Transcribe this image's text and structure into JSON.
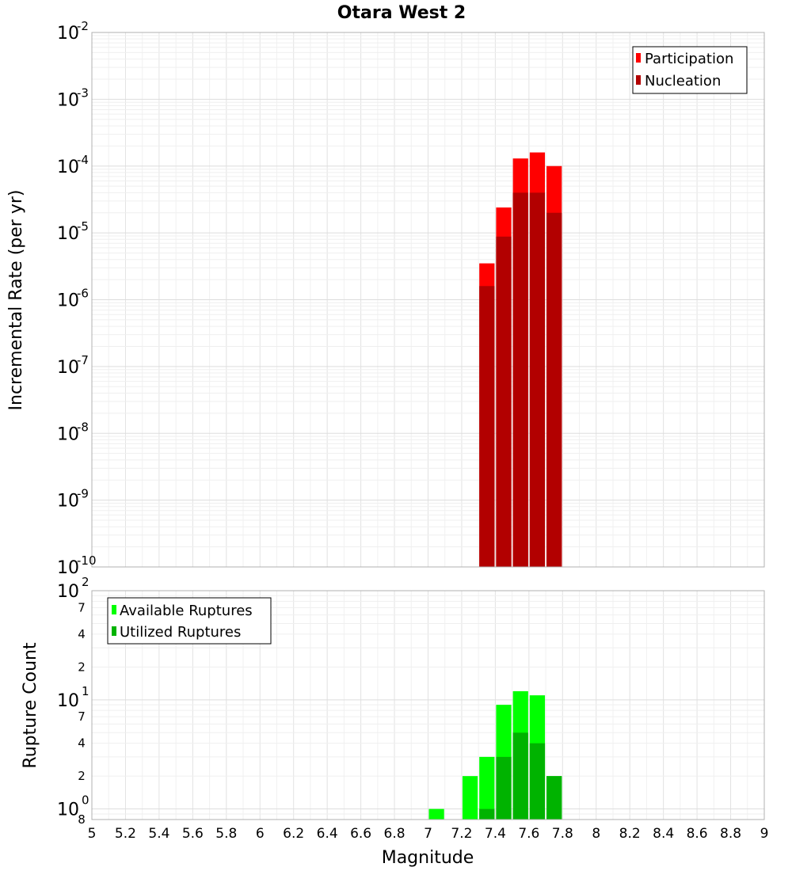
{
  "chart_data": [
    {
      "type": "bar",
      "title": "Otara West 2",
      "ylabel": "Incremental Rate (per yr)",
      "yscale": "log",
      "ylim": [
        1e-10,
        0.01
      ],
      "xlim": [
        5,
        9
      ],
      "grid": true,
      "legend_position": "top-right",
      "y_tick_labels": [
        {
          "base": "10",
          "exp": "-2"
        },
        {
          "base": "10",
          "exp": "-3"
        },
        {
          "base": "10",
          "exp": "-4"
        },
        {
          "base": "10",
          "exp": "-5"
        },
        {
          "base": "10",
          "exp": "-6"
        },
        {
          "base": "10",
          "exp": "-7"
        },
        {
          "base": "10",
          "exp": "-8"
        },
        {
          "base": "10",
          "exp": "-9"
        },
        {
          "base": "10",
          "exp": "-10"
        }
      ],
      "bar_width": 0.1,
      "x": [
        7.35,
        7.45,
        7.55,
        7.65,
        7.75
      ],
      "series": [
        {
          "name": "Participation",
          "color": "#ff0000",
          "values": [
            3.5e-06,
            2.4e-05,
            0.00013,
            0.00016,
            0.0001
          ]
        },
        {
          "name": "Nucleation",
          "color": "#b20000",
          "values": [
            1.6e-06,
            8.8e-06,
            4e-05,
            4e-05,
            2e-05
          ]
        }
      ]
    },
    {
      "type": "bar",
      "ylabel": "Rupture Count",
      "xlabel": "Magnitude",
      "yscale": "log",
      "ylim": [
        0.8,
        100
      ],
      "xlim": [
        5,
        9
      ],
      "grid": true,
      "legend_position": "top-left",
      "y_tick_labels": [
        {
          "base": "10",
          "exp": "2"
        },
        {
          "base": "10",
          "exp": "1"
        },
        {
          "base": "10",
          "exp": "0"
        }
      ],
      "y_minor_tick_labels": [
        {
          "value": 70,
          "label": "7"
        },
        {
          "value": 40,
          "label": "4"
        },
        {
          "value": 20,
          "label": "2"
        },
        {
          "value": 7,
          "label": "7"
        },
        {
          "value": 4,
          "label": "4"
        },
        {
          "value": 2,
          "label": "2"
        },
        {
          "value": 0.8,
          "label": "8"
        }
      ],
      "x_tick_labels": [
        "5",
        "5.2",
        "5.4",
        "5.6",
        "5.8",
        "6",
        "6.2",
        "6.4",
        "6.6",
        "6.8",
        "7",
        "7.2",
        "7.4",
        "7.6",
        "7.8",
        "8",
        "8.2",
        "8.4",
        "8.6",
        "8.8",
        "9"
      ],
      "bar_width": 0.1,
      "x": [
        7.05,
        7.25,
        7.35,
        7.45,
        7.55,
        7.65,
        7.75
      ],
      "series": [
        {
          "name": "Available Ruptures",
          "color": "#00ff00",
          "values": [
            1,
            2,
            3,
            9,
            12,
            11,
            2
          ]
        },
        {
          "name": "Utilized Ruptures",
          "color": "#00b300",
          "values": [
            0,
            0,
            1,
            3,
            5,
            4,
            2
          ]
        }
      ]
    }
  ]
}
